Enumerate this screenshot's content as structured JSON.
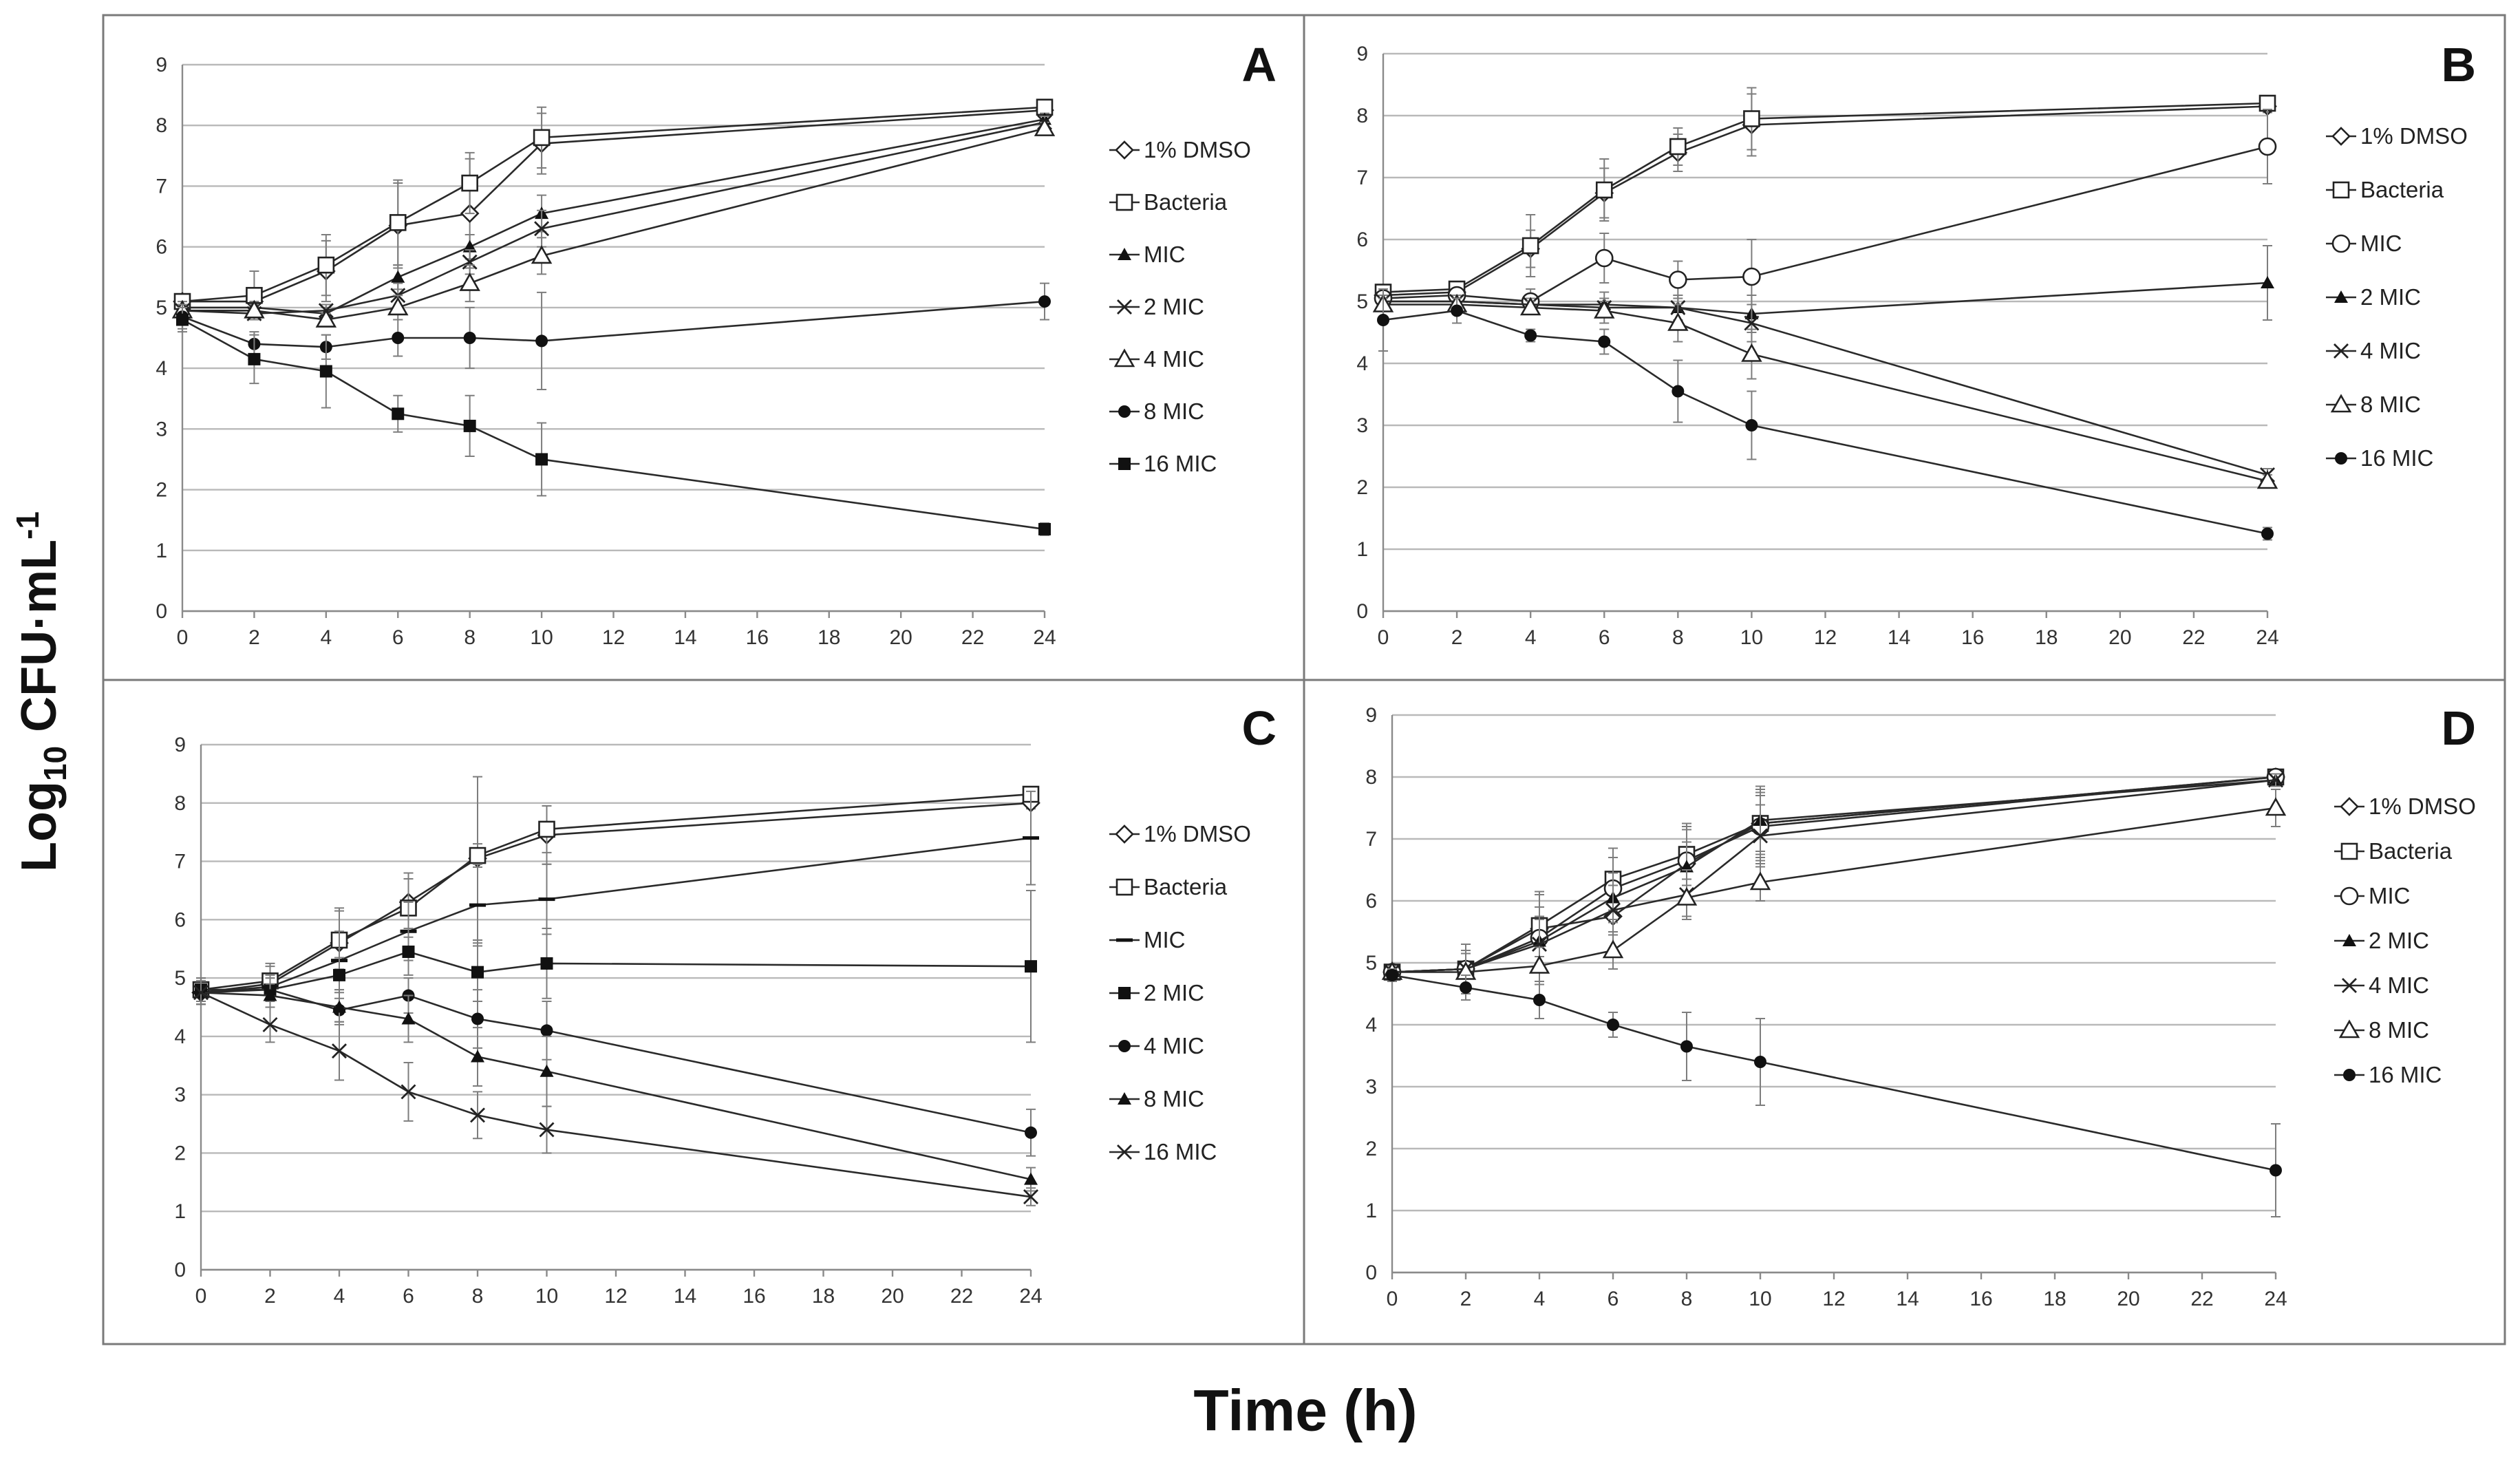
{
  "y_axis_title": {
    "base": "Log",
    "sub": "10",
    "unit": " CFU·mL",
    "sup": "-1"
  },
  "x_axis_title": "Time (h)",
  "chart_data": [
    {
      "type": "line",
      "panel": "A",
      "x": [
        0,
        2,
        4,
        6,
        8,
        10,
        24
      ],
      "xticks": [
        0,
        2,
        4,
        6,
        8,
        10,
        12,
        14,
        16,
        18,
        20,
        22,
        24
      ],
      "xlim": [
        0,
        24
      ],
      "ylim": [
        0,
        9
      ],
      "yticks": [
        0,
        1,
        2,
        3,
        4,
        5,
        6,
        7,
        8,
        9
      ],
      "grid": true,
      "legend": "right",
      "series": [
        {
          "name": "1% DMSO",
          "marker": "diamond-open",
          "values": [
            5.1,
            5.1,
            5.6,
            6.35,
            6.55,
            7.7,
            8.25
          ],
          "errors": [
            0.1,
            0.15,
            0.5,
            0.7,
            0.9,
            0.5,
            0.1
          ]
        },
        {
          "name": "Bacteria",
          "marker": "square-open",
          "values": [
            5.1,
            5.2,
            5.7,
            6.4,
            7.05,
            7.8,
            8.3
          ],
          "errors": [
            0.1,
            0.4,
            0.5,
            0.7,
            0.5,
            0.5,
            0.1
          ]
        },
        {
          "name": "MIC",
          "marker": "triangle-filled",
          "values": [
            5.0,
            5.0,
            4.9,
            5.5,
            6.0,
            6.55,
            8.1
          ],
          "errors": [
            0.1,
            0.1,
            0.1,
            0.2,
            0.2,
            0.3,
            0.1
          ]
        },
        {
          "name": "2 MIC",
          "marker": "x",
          "values": [
            4.95,
            4.9,
            4.95,
            5.2,
            5.75,
            6.3,
            8.05
          ],
          "errors": [
            0.1,
            0.1,
            0.1,
            0.2,
            0.2,
            0.3,
            0.1
          ]
        },
        {
          "name": "4 MIC",
          "marker": "triangle-open",
          "values": [
            4.95,
            4.95,
            4.8,
            5.0,
            5.4,
            5.85,
            7.95
          ],
          "errors": [
            0.1,
            0.1,
            0.1,
            0.2,
            0.3,
            0.3,
            0.1
          ]
        },
        {
          "name": "8 MIC",
          "marker": "circle-filled",
          "values": [
            4.85,
            4.4,
            4.35,
            4.5,
            4.5,
            4.45,
            5.1
          ],
          "errors": [
            0.2,
            0.2,
            0.2,
            0.3,
            0.5,
            0.8,
            0.3
          ]
        },
        {
          "name": "16 MIC",
          "marker": "square-filled",
          "values": [
            4.8,
            4.15,
            3.95,
            3.25,
            3.05,
            2.5,
            1.35
          ],
          "errors": [
            0.2,
            0.4,
            0.6,
            0.3,
            0.5,
            0.6,
            0.1
          ]
        }
      ]
    },
    {
      "type": "line",
      "panel": "B",
      "x": [
        0,
        2,
        4,
        6,
        8,
        10,
        24
      ],
      "xticks": [
        0,
        2,
        4,
        6,
        8,
        10,
        12,
        14,
        16,
        18,
        20,
        22,
        24
      ],
      "xlim": [
        0,
        24
      ],
      "ylim": [
        0,
        9
      ],
      "yticks": [
        0,
        1,
        2,
        3,
        4,
        5,
        6,
        7,
        8,
        9
      ],
      "grid": true,
      "legend": "right",
      "series": [
        {
          "name": "1% DMSO",
          "marker": "diamond-open",
          "values": [
            5.1,
            5.15,
            5.85,
            6.75,
            7.4,
            7.85,
            8.15
          ],
          "errors": [
            0.1,
            0.1,
            0.3,
            0.4,
            0.3,
            0.5,
            0.1
          ]
        },
        {
          "name": "Bacteria",
          "marker": "square-open",
          "values": [
            5.15,
            5.2,
            5.9,
            6.8,
            7.5,
            7.95,
            8.2
          ],
          "errors": [
            0.1,
            0.1,
            0.5,
            0.5,
            0.3,
            0.5,
            0.1
          ]
        },
        {
          "name": "MIC",
          "marker": "circle-open",
          "values": [
            5.05,
            5.1,
            5.0,
            5.7,
            5.35,
            5.4,
            7.5
          ],
          "errors": [
            0.1,
            0.1,
            0.2,
            0.4,
            0.3,
            0.6,
            0.6
          ]
        },
        {
          "name": "2 MIC",
          "marker": "triangle-filled",
          "values": [
            5.0,
            5.0,
            4.95,
            4.95,
            4.9,
            4.8,
            5.3
          ],
          "errors": [
            0.1,
            0.1,
            0.1,
            0.2,
            0.2,
            0.3,
            0.6
          ]
        },
        {
          "name": "4 MIC",
          "marker": "x",
          "values": [
            5.0,
            5.0,
            4.95,
            4.9,
            4.9,
            4.65,
            2.2
          ],
          "errors": [
            0.1,
            0.1,
            0.1,
            0.1,
            0.2,
            0.3,
            0.1
          ]
        },
        {
          "name": "8 MIC",
          "marker": "triangle-open",
          "values": [
            4.95,
            4.95,
            4.9,
            4.85,
            4.65,
            4.15,
            2.1
          ],
          "errors": [
            0.1,
            0.1,
            0.1,
            0.2,
            0.3,
            0.4,
            0.1
          ]
        },
        {
          "name": "16 MIC",
          "marker": "circle-filled",
          "values": [
            4.7,
            4.85,
            4.45,
            4.35,
            3.55,
            3.0,
            1.25
          ],
          "errors": [
            0.5,
            0.2,
            0.1,
            0.2,
            0.5,
            0.55,
            0.1
          ]
        }
      ]
    },
    {
      "type": "line",
      "panel": "C",
      "x": [
        0,
        2,
        4,
        6,
        8,
        10,
        24
      ],
      "xticks": [
        0,
        2,
        4,
        6,
        8,
        10,
        12,
        14,
        16,
        18,
        20,
        22,
        24
      ],
      "xlim": [
        0,
        24
      ],
      "ylim": [
        0,
        9
      ],
      "yticks": [
        0,
        1,
        2,
        3,
        4,
        5,
        6,
        7,
        8,
        9
      ],
      "grid": true,
      "legend": "right",
      "series": [
        {
          "name": "1% DMSO",
          "marker": "diamond-open",
          "values": [
            4.75,
            4.9,
            5.6,
            6.3,
            7.05,
            7.45,
            8.0
          ],
          "errors": [
            0.2,
            0.3,
            0.6,
            0.5,
            1.4,
            0.5,
            0.1
          ]
        },
        {
          "name": "Bacteria",
          "marker": "square-open",
          "values": [
            4.8,
            4.95,
            5.65,
            6.2,
            7.1,
            7.55,
            8.15
          ],
          "errors": [
            0.2,
            0.3,
            0.5,
            0.5,
            0.2,
            0.4,
            0.1
          ]
        },
        {
          "name": "MIC",
          "marker": "dash",
          "values": [
            4.75,
            4.85,
            5.3,
            5.8,
            6.25,
            6.35,
            7.4
          ],
          "errors": [
            0.2,
            0.2,
            0.5,
            0.5,
            0.7,
            0.6,
            0.8
          ]
        },
        {
          "name": "2 MIC",
          "marker": "square-filled",
          "values": [
            4.8,
            4.8,
            5.05,
            5.45,
            5.1,
            5.25,
            5.2
          ],
          "errors": [
            0.2,
            0.2,
            0.3,
            0.4,
            0.5,
            0.6,
            1.3
          ]
        },
        {
          "name": "4 MIC",
          "marker": "circle-filled",
          "values": [
            4.75,
            4.8,
            4.45,
            4.7,
            4.3,
            4.1,
            2.35
          ],
          "errors": [
            0.2,
            0.2,
            0.2,
            0.3,
            0.5,
            0.5,
            0.4
          ]
        },
        {
          "name": "8 MIC",
          "marker": "triangle-filled",
          "values": [
            4.75,
            4.7,
            4.5,
            4.3,
            3.65,
            3.4,
            1.55
          ],
          "errors": [
            0.2,
            0.2,
            0.3,
            0.4,
            0.5,
            0.6,
            0.2
          ]
        },
        {
          "name": "16 MIC",
          "marker": "x",
          "values": [
            4.75,
            4.2,
            3.75,
            3.05,
            2.65,
            2.4,
            1.25
          ],
          "errors": [
            0.2,
            0.3,
            0.5,
            0.5,
            0.4,
            0.4,
            0.15
          ]
        }
      ]
    },
    {
      "type": "line",
      "panel": "D",
      "x": [
        0,
        2,
        4,
        6,
        8,
        10,
        24
      ],
      "xticks": [
        0,
        2,
        4,
        6,
        8,
        10,
        12,
        14,
        16,
        18,
        20,
        22,
        24
      ],
      "xlim": [
        0,
        24
      ],
      "ylim": [
        0,
        9
      ],
      "yticks": [
        0,
        1,
        2,
        3,
        4,
        5,
        6,
        7,
        8,
        9
      ],
      "grid": true,
      "legend": "right",
      "series": [
        {
          "name": "1% DMSO",
          "marker": "diamond-open",
          "values": [
            4.85,
            4.9,
            5.55,
            5.75,
            6.6,
            7.25,
            8.0
          ],
          "errors": [
            0.1,
            0.4,
            0.6,
            0.6,
            0.6,
            0.6,
            0.1
          ]
        },
        {
          "name": "Bacteria",
          "marker": "square-open",
          "values": [
            4.85,
            4.9,
            5.6,
            6.35,
            6.75,
            7.25,
            8.0
          ],
          "errors": [
            0.1,
            0.4,
            0.5,
            0.5,
            0.5,
            0.5,
            0.1
          ]
        },
        {
          "name": "MIC",
          "marker": "circle-open",
          "values": [
            4.85,
            4.9,
            5.4,
            6.2,
            6.65,
            7.2,
            8.0
          ],
          "errors": [
            0.1,
            0.3,
            0.5,
            0.5,
            0.5,
            0.5,
            0.1
          ]
        },
        {
          "name": "2 MIC",
          "marker": "triangle-filled",
          "values": [
            4.85,
            4.9,
            5.35,
            6.05,
            6.55,
            7.3,
            7.95
          ],
          "errors": [
            0.1,
            0.3,
            0.4,
            0.4,
            0.4,
            0.5,
            0.1
          ]
        },
        {
          "name": "4 MIC",
          "marker": "x",
          "values": [
            4.85,
            4.9,
            5.3,
            5.85,
            6.1,
            7.05,
            7.95
          ],
          "errors": [
            0.1,
            0.3,
            0.4,
            0.4,
            0.4,
            0.5,
            0.1
          ]
        },
        {
          "name": "8 MIC",
          "marker": "triangle-open",
          "values": [
            4.85,
            4.85,
            4.95,
            5.2,
            6.05,
            6.3,
            7.5
          ],
          "errors": [
            0.1,
            0.3,
            0.3,
            0.3,
            0.3,
            0.3,
            0.3
          ]
        },
        {
          "name": "16 MIC",
          "marker": "circle-filled",
          "values": [
            4.8,
            4.6,
            4.4,
            4.0,
            3.65,
            3.4,
            1.65
          ],
          "errors": [
            0.1,
            0.2,
            0.3,
            0.2,
            0.55,
            0.7,
            0.75
          ]
        }
      ]
    }
  ]
}
